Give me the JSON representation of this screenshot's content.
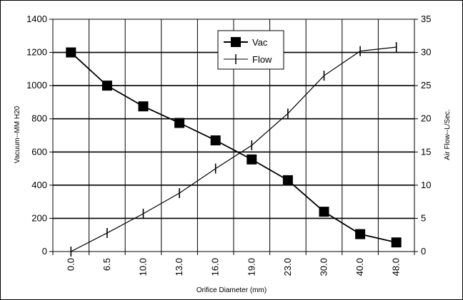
{
  "chart_data": {
    "type": "line",
    "title": "",
    "categories": [
      "0.0",
      "6.5",
      "10.0",
      "13.0",
      "16.0",
      "19.0",
      "23.0",
      "30.0",
      "40.0",
      "48.0"
    ],
    "xlabel": "Orifice Diameter (mm)",
    "ylabel": "Vacuum--MM H20",
    "y2label": "Air Flow--L/Sec.",
    "ylim": [
      0,
      1400
    ],
    "y_ticks": [
      "0",
      "200",
      "400",
      "600",
      "800",
      "1000",
      "1200",
      "1400"
    ],
    "y2lim": [
      0,
      35
    ],
    "y2_ticks": [
      "0",
      "5",
      "10",
      "15",
      "20",
      "25",
      "30",
      "35"
    ],
    "grid": "horizontal and vertical",
    "legend_position": "top-center",
    "series": [
      {
        "name": "Vac",
        "axis": "left",
        "marker": "square",
        "color": "#000000",
        "values": [
          1200,
          1000,
          875,
          775,
          670,
          555,
          430,
          240,
          105,
          55
        ]
      },
      {
        "name": "Flow",
        "axis": "right",
        "marker": "vertical-dash",
        "color": "#000000",
        "values": [
          0,
          2.8,
          5.7,
          8.8,
          12.5,
          16,
          20.8,
          26.5,
          30.2,
          30.8
        ]
      }
    ]
  }
}
